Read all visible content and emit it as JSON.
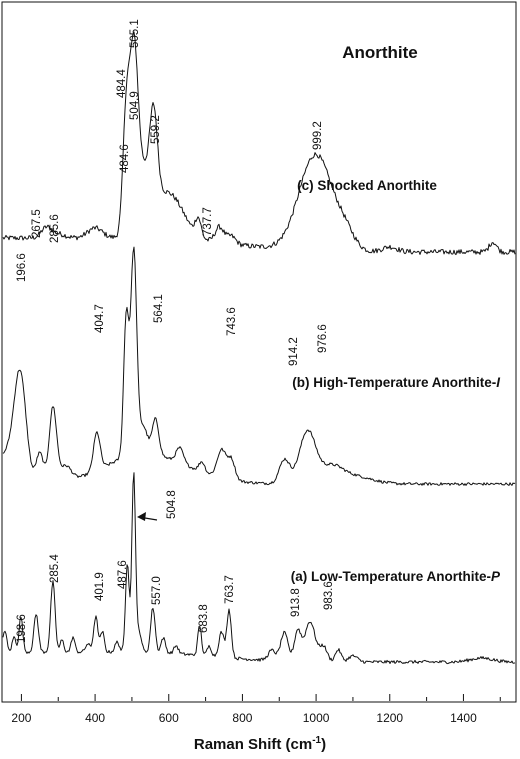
{
  "chart_data": {
    "type": "line",
    "title": "Anorthite",
    "xlabel": "Raman Shift (cm",
    "xlabel_sup": "-1",
    "xlabel_end": ")",
    "xlim": [
      150,
      1540
    ],
    "xticks": [
      200,
      400,
      600,
      800,
      1000,
      1200,
      1400
    ],
    "ylabel": "",
    "grid": false,
    "series": [
      {
        "name": "(c) Shocked Anorthite",
        "prefix": "(c) Shocked Anorthite",
        "suffix": "",
        "peaks": [
          267.5,
          484.4,
          505.1,
          559.2,
          737.7,
          999.2
        ]
      },
      {
        "name": "(b) High-Temperature Anorthite-I",
        "prefix": "(b) High-Temperature Anorthite-",
        "suffix": "I",
        "peaks": [
          196.6,
          285.6,
          404.7,
          484.6,
          504.9,
          564.1,
          743.6,
          914.2,
          976.6
        ]
      },
      {
        "name": "(a) Low-Temperature Anorthite-P",
        "prefix": "(a) Low-Temperature Anorthite-",
        "suffix": "P",
        "peaks": [
          198.6,
          285.4,
          401.9,
          487.6,
          504.8,
          557.0,
          683.8,
          763.7,
          913.8,
          983.6
        ]
      }
    ],
    "peak_labels": {
      "c": [
        "267.5",
        "484.4",
        "505.1",
        "559.2",
        "737.7",
        "999.2"
      ],
      "b": [
        "196.6",
        "285.6",
        "404.7",
        "484.6",
        "504.9",
        "564.1",
        "743.6",
        "914.2",
        "976.6"
      ],
      "a": [
        "198.6",
        "285.4",
        "401.9",
        "487.6",
        "504.8",
        "557.0",
        "683.8",
        "763.7",
        "913.8",
        "983.6"
      ]
    }
  }
}
